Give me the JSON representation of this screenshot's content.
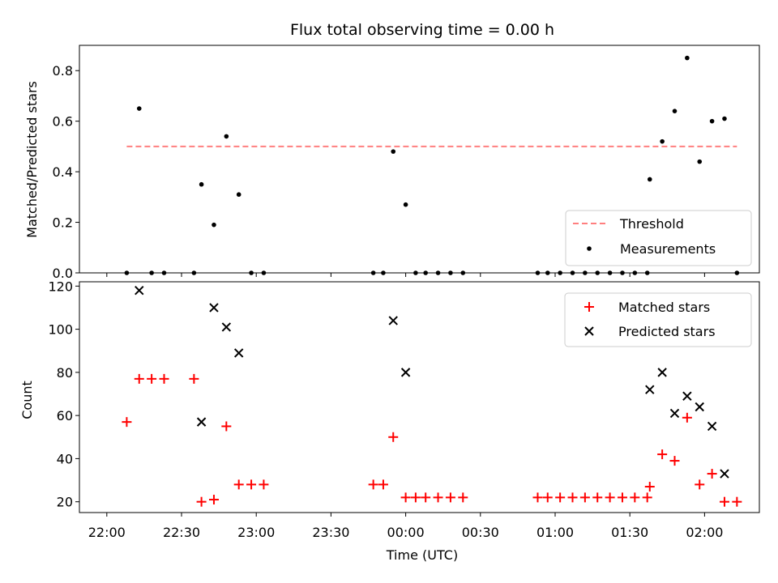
{
  "chart_data": [
    {
      "type": "scatter",
      "title": "Flux total observing time = 0.00 h",
      "xlabel": "",
      "ylabel": "Matched/Predicted stars",
      "ylim": [
        0,
        0.9
      ],
      "yticks": [
        "0.0",
        "0.2",
        "0.4",
        "0.6",
        "0.8"
      ],
      "legend_position": "lower-right",
      "threshold": {
        "name": "Threshold",
        "value": 0.5,
        "x_range": [
          "22:08",
          "02:13"
        ],
        "color": "#ff7f7f",
        "style": "dashed"
      },
      "series": [
        {
          "name": "Measurements",
          "color": "#000000",
          "marker": "dot",
          "points": [
            [
              "22:08",
              0.0
            ],
            [
              "22:13",
              0.65
            ],
            [
              "22:18",
              0.0
            ],
            [
              "22:23",
              0.0
            ],
            [
              "22:35",
              0.0
            ],
            [
              "22:38",
              0.35
            ],
            [
              "22:43",
              0.19
            ],
            [
              "22:48",
              0.54
            ],
            [
              "22:53",
              0.31
            ],
            [
              "22:58",
              0.0
            ],
            [
              "23:03",
              0.0
            ],
            [
              "23:47",
              0.0
            ],
            [
              "23:51",
              0.0
            ],
            [
              "23:55",
              0.48
            ],
            [
              "00:00",
              0.27
            ],
            [
              "00:04",
              0.0
            ],
            [
              "00:08",
              0.0
            ],
            [
              "00:13",
              0.0
            ],
            [
              "00:18",
              0.0
            ],
            [
              "00:23",
              0.0
            ],
            [
              "00:53",
              0.0
            ],
            [
              "00:57",
              0.0
            ],
            [
              "01:02",
              0.0
            ],
            [
              "01:07",
              0.0
            ],
            [
              "01:12",
              0.0
            ],
            [
              "01:17",
              0.0
            ],
            [
              "01:22",
              0.0
            ],
            [
              "01:27",
              0.0
            ],
            [
              "01:32",
              0.0
            ],
            [
              "01:37",
              0.0
            ],
            [
              "01:38",
              0.37
            ],
            [
              "01:43",
              0.52
            ],
            [
              "01:48",
              0.64
            ],
            [
              "01:53",
              0.85
            ],
            [
              "01:58",
              0.44
            ],
            [
              "02:03",
              0.6
            ],
            [
              "02:08",
              0.61
            ],
            [
              "02:13",
              0.0
            ]
          ]
        }
      ]
    },
    {
      "type": "scatter",
      "xlabel": "Time (UTC)",
      "ylabel": "Count",
      "ylim": [
        15,
        122
      ],
      "yticks": [
        "20",
        "40",
        "60",
        "80",
        "100",
        "120"
      ],
      "xticks": [
        "22:00",
        "22:30",
        "23:00",
        "23:30",
        "00:00",
        "00:30",
        "01:00",
        "01:30",
        "02:00"
      ],
      "legend_position": "upper-right",
      "series": [
        {
          "name": "Matched stars",
          "color": "#ff0000",
          "marker": "plus",
          "points": [
            [
              "22:08",
              57
            ],
            [
              "22:13",
              77
            ],
            [
              "22:18",
              77
            ],
            [
              "22:23",
              77
            ],
            [
              "22:35",
              77
            ],
            [
              "22:38",
              20
            ],
            [
              "22:43",
              21
            ],
            [
              "22:48",
              55
            ],
            [
              "22:53",
              28
            ],
            [
              "22:58",
              28
            ],
            [
              "23:03",
              28
            ],
            [
              "23:47",
              28
            ],
            [
              "23:51",
              28
            ],
            [
              "23:55",
              50
            ],
            [
              "00:00",
              22
            ],
            [
              "00:04",
              22
            ],
            [
              "00:08",
              22
            ],
            [
              "00:13",
              22
            ],
            [
              "00:18",
              22
            ],
            [
              "00:23",
              22
            ],
            [
              "00:53",
              22
            ],
            [
              "00:57",
              22
            ],
            [
              "01:02",
              22
            ],
            [
              "01:07",
              22
            ],
            [
              "01:12",
              22
            ],
            [
              "01:17",
              22
            ],
            [
              "01:22",
              22
            ],
            [
              "01:27",
              22
            ],
            [
              "01:32",
              22
            ],
            [
              "01:37",
              22
            ],
            [
              "01:38",
              27
            ],
            [
              "01:43",
              42
            ],
            [
              "01:48",
              39
            ],
            [
              "01:53",
              59
            ],
            [
              "01:58",
              28
            ],
            [
              "02:03",
              33
            ],
            [
              "02:08",
              20
            ],
            [
              "02:13",
              20
            ]
          ]
        },
        {
          "name": "Predicted stars",
          "color": "#000000",
          "marker": "x",
          "points": [
            [
              "22:13",
              118
            ],
            [
              "22:38",
              57
            ],
            [
              "22:43",
              110
            ],
            [
              "22:48",
              101
            ],
            [
              "22:53",
              89
            ],
            [
              "23:55",
              104
            ],
            [
              "00:00",
              80
            ],
            [
              "01:38",
              72
            ],
            [
              "01:43",
              80
            ],
            [
              "01:48",
              61
            ],
            [
              "01:53",
              69
            ],
            [
              "01:58",
              64
            ],
            [
              "02:03",
              55
            ],
            [
              "02:08",
              33
            ]
          ]
        }
      ]
    }
  ]
}
